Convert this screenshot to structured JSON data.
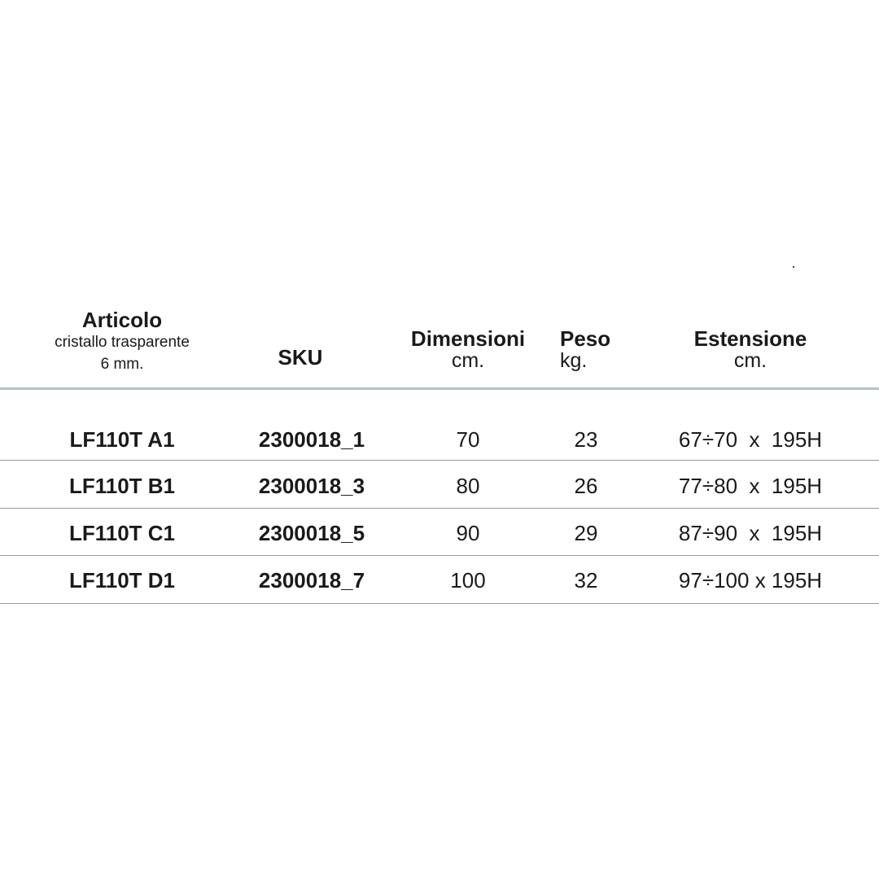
{
  "table": {
    "headers": {
      "articolo": {
        "title": "Articolo",
        "sub1": "cristallo trasparente",
        "sub2": "6 mm."
      },
      "sku": {
        "title": "SKU"
      },
      "dimensioni": {
        "title": "Dimensioni",
        "unit": "cm."
      },
      "peso": {
        "title": "Peso",
        "unit": "kg."
      },
      "estensione": {
        "title": "Estensione",
        "unit": "cm."
      }
    },
    "rows": [
      {
        "articolo": "LF110T A1",
        "sku": "2300018_1",
        "dimensioni": "70",
        "peso": "23",
        "estensione": "67÷70  x  195H"
      },
      {
        "articolo": "LF110T B1",
        "sku": "2300018_3",
        "dimensioni": "80",
        "peso": "26",
        "estensione": "77÷80  x  195H"
      },
      {
        "articolo": "LF110T C1",
        "sku": "2300018_5",
        "dimensioni": "90",
        "peso": "29",
        "estensione": "87÷90  x  195H"
      },
      {
        "articolo": "LF110T D1",
        "sku": "2300018_7",
        "dimensioni": "100",
        "peso": "32",
        "estensione": "97÷100 x 195H"
      }
    ],
    "colors": {
      "header_rule": "#b4c3cc",
      "row_rule": "#9a9a9a",
      "text": "#1a1a1a"
    }
  }
}
